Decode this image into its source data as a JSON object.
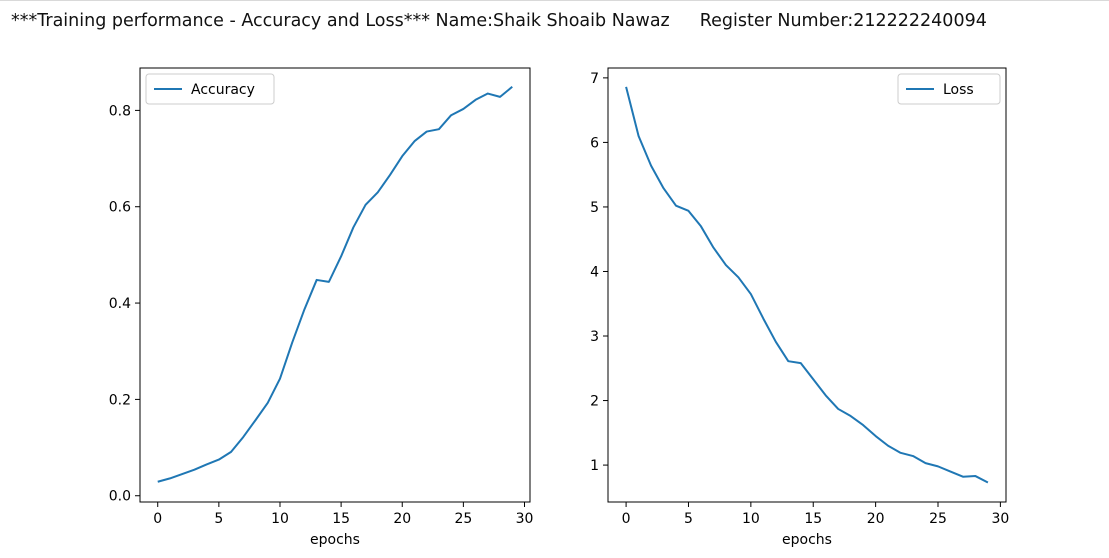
{
  "header": {
    "title": "***Training performance - Accuracy and Loss*** Name:Shaik Shoaib Nawaz",
    "register": "Register Number:212222240094"
  },
  "colors": {
    "line": "#1f77b4",
    "axes": "#000000",
    "legend_border": "#cccccc"
  },
  "chart_data": [
    {
      "type": "line",
      "xlabel": "epochs",
      "ylabel": "",
      "xlim": [
        -1.45,
        30.45
      ],
      "ylim": [
        -0.013,
        0.888
      ],
      "xticks": [
        0,
        5,
        10,
        15,
        20,
        25,
        30
      ],
      "yticks": [
        0.0,
        0.2,
        0.4,
        0.6,
        0.8
      ],
      "ytick_labels": [
        "0.0",
        "0.2",
        "0.4",
        "0.6",
        "0.8"
      ],
      "legend_position": "upper left",
      "grid": false,
      "series": [
        {
          "name": "Accuracy",
          "x": [
            0,
            1,
            2,
            3,
            4,
            5,
            6,
            7,
            8,
            9,
            10,
            11,
            12,
            13,
            14,
            15,
            16,
            17,
            18,
            19,
            20,
            21,
            22,
            23,
            24,
            25,
            26,
            27,
            28,
            29
          ],
          "y": [
            0.029,
            0.036,
            0.045,
            0.054,
            0.065,
            0.075,
            0.091,
            0.122,
            0.157,
            0.193,
            0.243,
            0.318,
            0.387,
            0.448,
            0.444,
            0.497,
            0.557,
            0.604,
            0.63,
            0.666,
            0.705,
            0.736,
            0.756,
            0.761,
            0.79,
            0.803,
            0.822,
            0.835,
            0.828,
            0.849
          ]
        }
      ]
    },
    {
      "type": "line",
      "xlabel": "epochs",
      "ylabel": "",
      "xlim": [
        -1.45,
        30.45
      ],
      "ylim": [
        0.428,
        7.153
      ],
      "xticks": [
        0,
        5,
        10,
        15,
        20,
        25,
        30
      ],
      "yticks": [
        1,
        2,
        3,
        4,
        5,
        6,
        7
      ],
      "ytick_labels": [
        "1",
        "2",
        "3",
        "4",
        "5",
        "6",
        "7"
      ],
      "legend_position": "upper right",
      "grid": false,
      "series": [
        {
          "name": "Loss",
          "x": [
            0,
            1,
            2,
            3,
            4,
            5,
            6,
            7,
            8,
            9,
            10,
            11,
            12,
            13,
            14,
            15,
            16,
            17,
            18,
            19,
            20,
            21,
            22,
            23,
            24,
            25,
            26,
            27,
            28,
            29
          ],
          "y": [
            6.86,
            6.1,
            5.64,
            5.29,
            5.02,
            4.94,
            4.7,
            4.37,
            4.1,
            3.91,
            3.65,
            3.27,
            2.91,
            2.61,
            2.58,
            2.33,
            2.08,
            1.87,
            1.76,
            1.62,
            1.45,
            1.3,
            1.19,
            1.14,
            1.03,
            0.98,
            0.9,
            0.82,
            0.83,
            0.73
          ]
        }
      ]
    }
  ]
}
